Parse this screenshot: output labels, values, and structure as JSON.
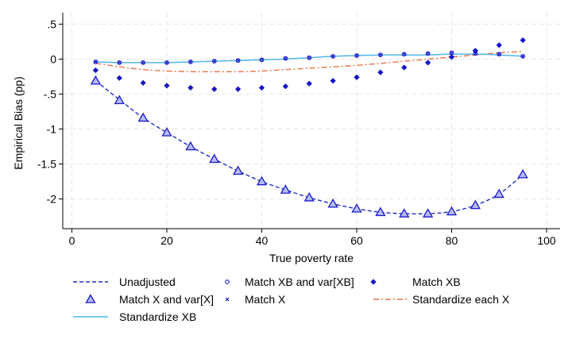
{
  "chart_data": {
    "type": "line",
    "xlabel": "True poverty rate",
    "ylabel": "Empirical Bias (pp)",
    "xlim": [
      0,
      100
    ],
    "ylim": [
      -2.3,
      0.55
    ],
    "x_ticks": [
      0,
      20,
      40,
      60,
      80,
      100
    ],
    "x_tick_labels": [
      "0",
      "20",
      "40",
      "60",
      "80",
      "100"
    ],
    "y_ticks": [
      0.5,
      0,
      -0.5,
      -1,
      -1.5,
      -2
    ],
    "y_tick_labels": [
      ".5",
      "0",
      "-.5",
      "-1",
      "-1.5",
      "-2"
    ],
    "grid": true,
    "legend_position": "bottom",
    "x": [
      5,
      10,
      15,
      20,
      25,
      30,
      35,
      40,
      45,
      50,
      55,
      60,
      65,
      70,
      75,
      80,
      85,
      90,
      95
    ],
    "series": [
      {
        "name": "Unadjusted",
        "style": "dashed-line",
        "color": "#1f2fbf",
        "values": [
          -0.31,
          -0.58,
          -0.84,
          -1.05,
          -1.25,
          -1.43,
          -1.6,
          -1.75,
          -1.87,
          -1.98,
          -2.07,
          -2.14,
          -2.19,
          -2.21,
          -2.21,
          -2.18,
          -2.09,
          -1.93,
          -1.65
        ]
      },
      {
        "name": "Match X and var[X]",
        "style": "triangle-marker",
        "color": "#1a1acc",
        "values": [
          -0.31,
          -0.59,
          -0.84,
          -1.05,
          -1.25,
          -1.43,
          -1.6,
          -1.75,
          -1.87,
          -1.98,
          -2.07,
          -2.14,
          -2.19,
          -2.21,
          -2.21,
          -2.18,
          -2.09,
          -1.93,
          -1.65
        ]
      },
      {
        "name": "Standardize XB",
        "style": "solid-line",
        "color": "#4fb5ea",
        "values": [
          -0.04,
          -0.05,
          -0.05,
          -0.05,
          -0.04,
          -0.03,
          -0.02,
          -0.01,
          0.0,
          0.02,
          0.04,
          0.05,
          0.06,
          0.06,
          0.06,
          0.07,
          0.07,
          0.06,
          0.04
        ]
      },
      {
        "name": "Match XB and var[XB]",
        "style": "hollow-circle-marker",
        "color": "#1a1acc",
        "values": [
          -0.04,
          -0.05,
          -0.05,
          -0.05,
          -0.04,
          -0.03,
          -0.02,
          -0.01,
          0.01,
          0.02,
          0.04,
          0.05,
          0.06,
          0.07,
          0.08,
          0.09,
          0.08,
          0.07,
          0.04
        ]
      },
      {
        "name": "Match X",
        "style": "x-marker",
        "color": "#1a1acc",
        "values": [
          -0.04,
          -0.05,
          -0.05,
          -0.05,
          -0.04,
          -0.03,
          -0.02,
          -0.01,
          0.01,
          0.02,
          0.04,
          0.05,
          0.06,
          0.07,
          0.08,
          0.09,
          0.08,
          0.07,
          0.04
        ]
      },
      {
        "name": "Match XB",
        "style": "diamond-marker",
        "color": "#1414c8",
        "values": [
          -0.16,
          -0.27,
          -0.34,
          -0.38,
          -0.41,
          -0.43,
          -0.43,
          -0.41,
          -0.39,
          -0.35,
          -0.31,
          -0.26,
          -0.19,
          -0.12,
          -0.05,
          0.03,
          0.12,
          0.2,
          0.27
        ]
      },
      {
        "name": "Standardize each X",
        "style": "dash-dot-line",
        "color": "#e8734a",
        "values": [
          -0.06,
          -0.11,
          -0.15,
          -0.17,
          -0.18,
          -0.18,
          -0.18,
          -0.17,
          -0.15,
          -0.13,
          -0.11,
          -0.09,
          -0.06,
          -0.03,
          0.0,
          0.03,
          0.06,
          0.09,
          0.11
        ]
      }
    ]
  }
}
